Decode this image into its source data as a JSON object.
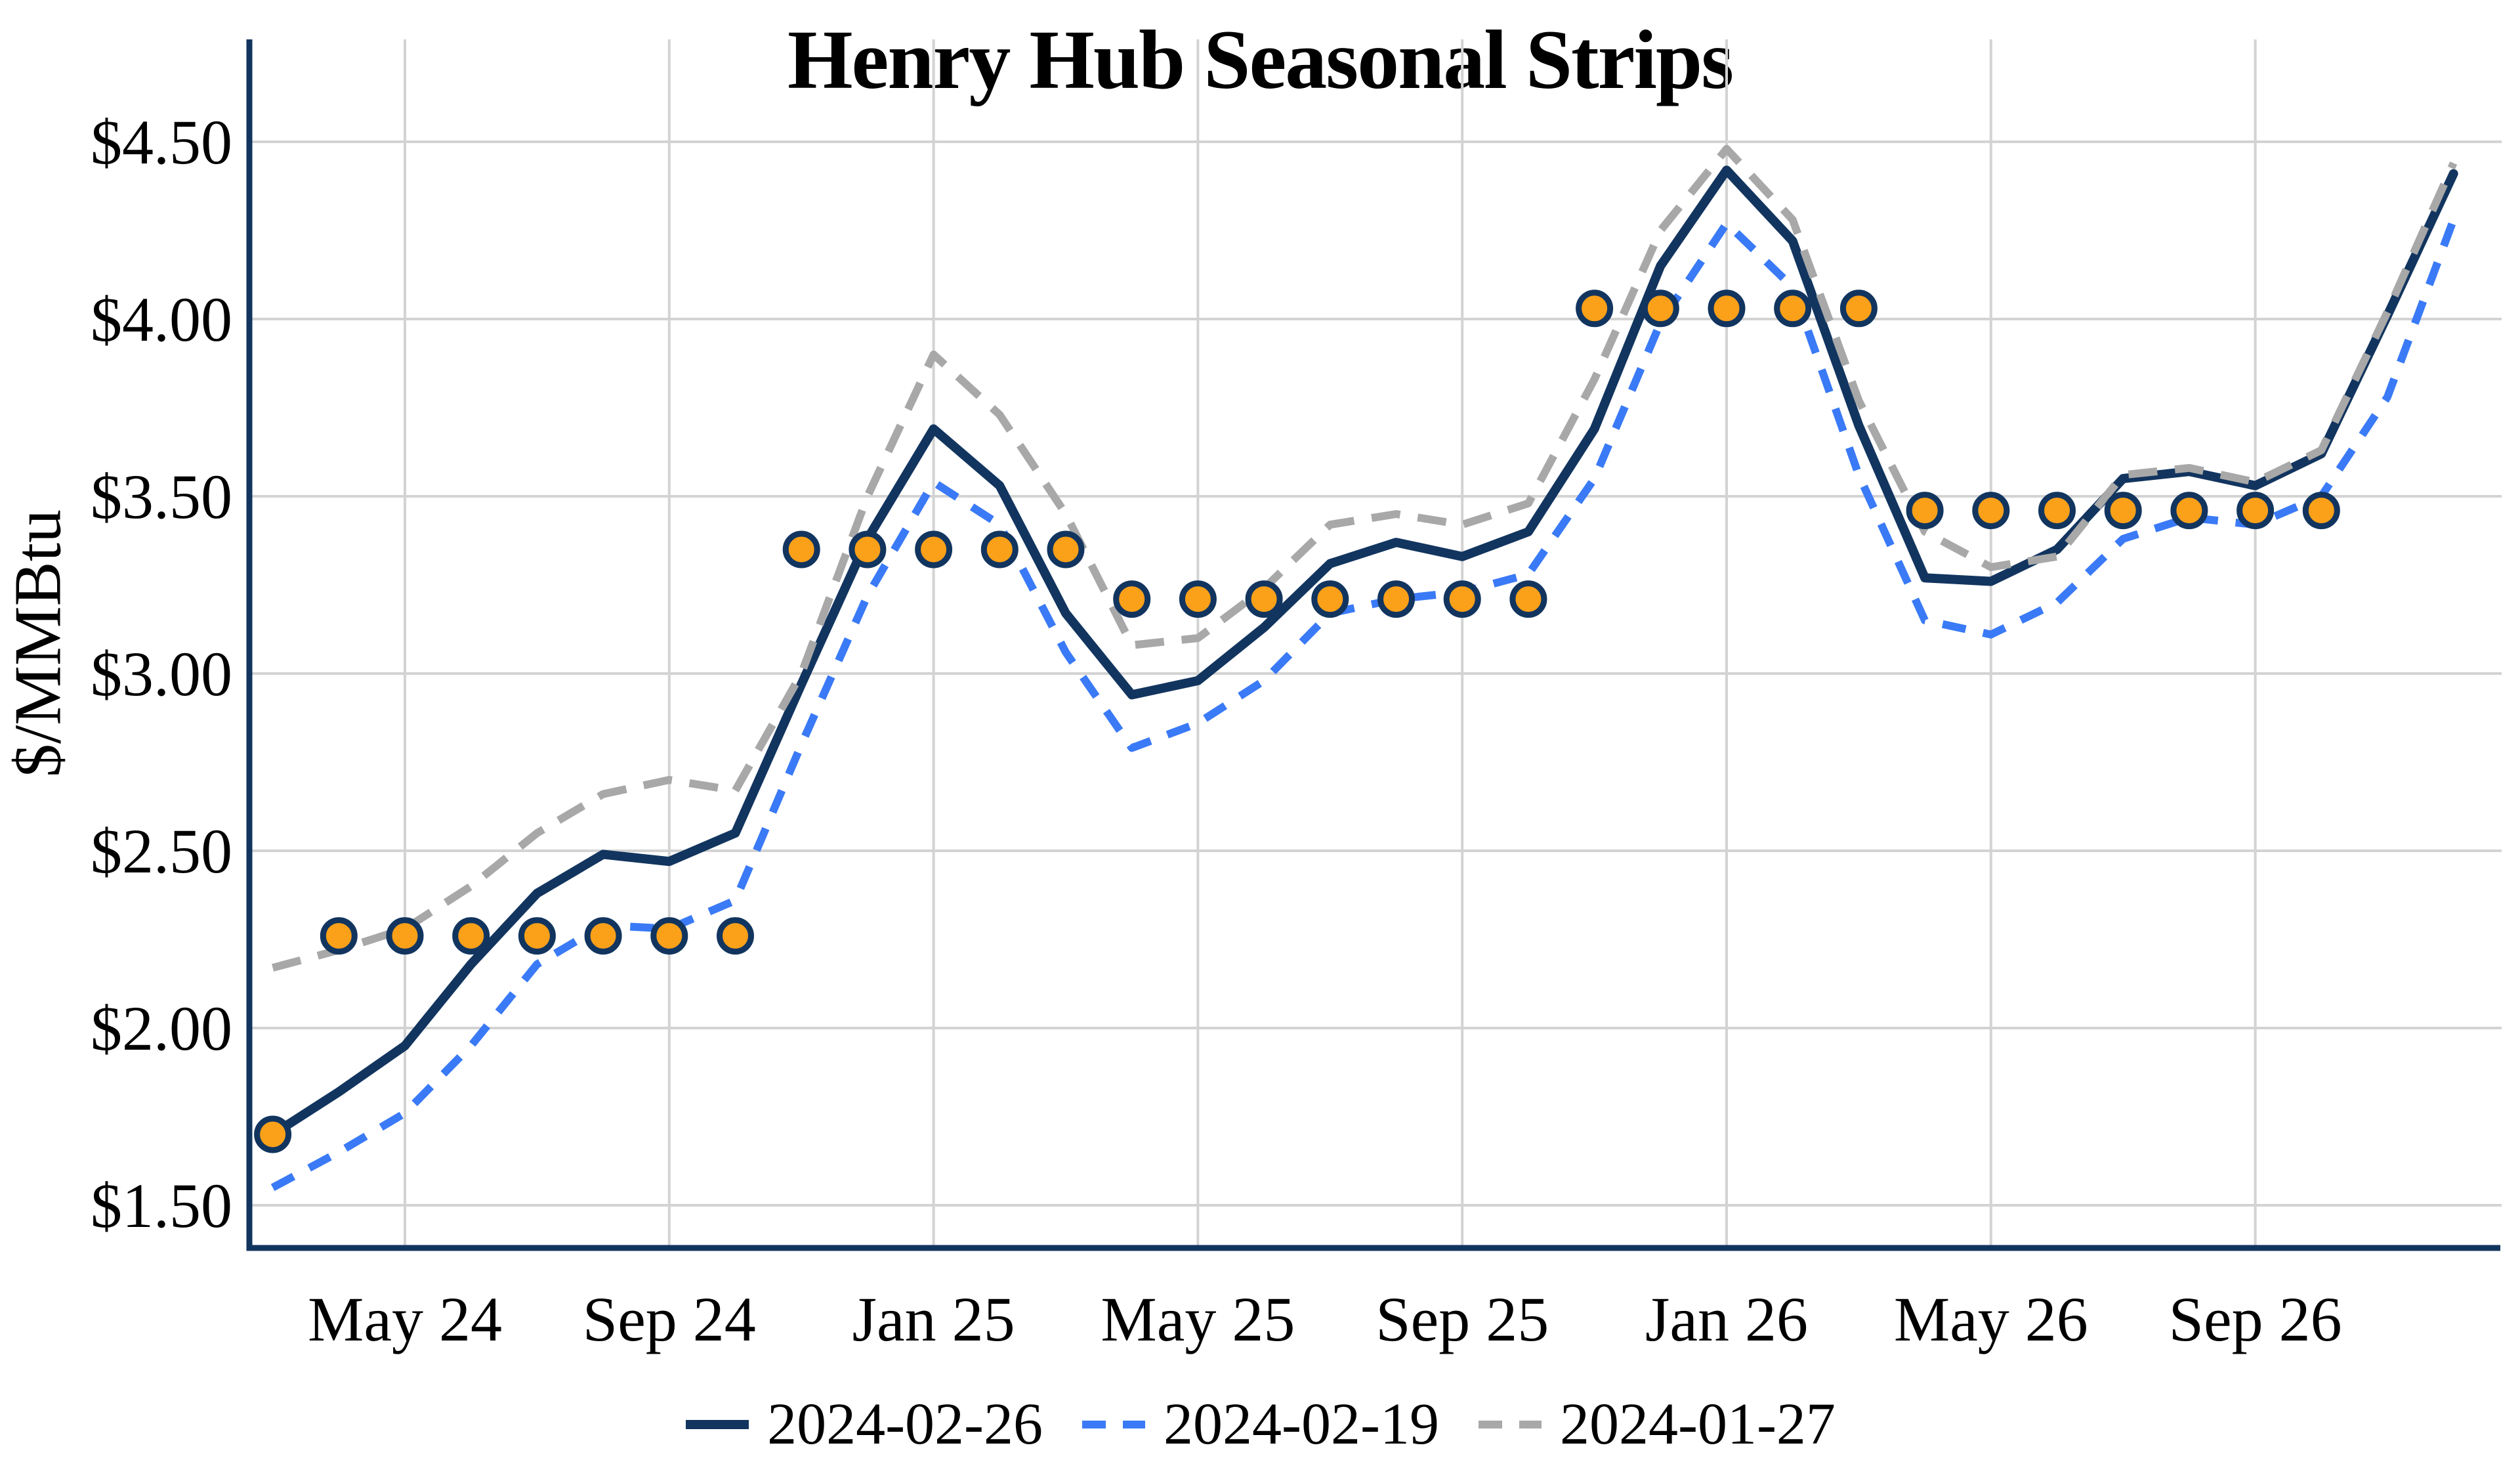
{
  "chart_data": {
    "type": "line",
    "title": "Henry Hub Seasonal Strips",
    "ylabel": "$/MMBtu",
    "xlabel": "",
    "grid": true,
    "legend_position": "bottom",
    "x_categories": [
      "Mar 24",
      "Apr 24",
      "May 24",
      "Jun 24",
      "Jul 24",
      "Aug 24",
      "Sep 24",
      "Oct 24",
      "Nov 24",
      "Dec 24",
      "Jan 25",
      "Feb 25",
      "Mar 25",
      "Apr 25",
      "May 25",
      "Jun 25",
      "Jul 25",
      "Aug 25",
      "Sep 25",
      "Oct 25",
      "Nov 25",
      "Dec 25",
      "Jan 26",
      "Feb 26",
      "Mar 26",
      "Apr 26",
      "May 26",
      "Jun 26",
      "Jul 26",
      "Aug 26",
      "Sep 26",
      "Oct 26",
      "Nov 26",
      "Dec 26"
    ],
    "x_ticks": [
      {
        "index": 2,
        "label": "May 24"
      },
      {
        "index": 6,
        "label": "Sep 24"
      },
      {
        "index": 10,
        "label": "Jan 25"
      },
      {
        "index": 14,
        "label": "May 25"
      },
      {
        "index": 18,
        "label": "Sep 25"
      },
      {
        "index": 22,
        "label": "Jan 26"
      },
      {
        "index": 26,
        "label": "May 26"
      },
      {
        "index": 30,
        "label": "Sep 26"
      }
    ],
    "y_ticks": [
      {
        "value": 1.5,
        "label": "$1.50"
      },
      {
        "value": 2.0,
        "label": "$2.00"
      },
      {
        "value": 2.5,
        "label": "$2.50"
      },
      {
        "value": 3.0,
        "label": "$3.00"
      },
      {
        "value": 3.5,
        "label": "$3.50"
      },
      {
        "value": 4.0,
        "label": "$4.00"
      },
      {
        "value": 4.5,
        "label": "$4.50"
      }
    ],
    "ylim": [
      1.38,
      4.79
    ],
    "series": [
      {
        "name": "2024-02-26",
        "style": "solid",
        "color": "#12355F",
        "values": [
          1.7,
          1.82,
          1.95,
          2.18,
          2.38,
          2.49,
          2.47,
          2.55,
          2.97,
          3.38,
          3.69,
          3.53,
          3.17,
          2.94,
          2.98,
          3.13,
          3.31,
          3.37,
          3.33,
          3.4,
          3.69,
          4.15,
          4.42,
          4.22,
          3.7,
          3.27,
          3.26,
          3.35,
          3.55,
          3.57,
          3.53,
          3.62,
          4.01,
          4.41
        ]
      },
      {
        "name": "2024-02-19",
        "style": "dashed",
        "color": "#3A7AF6",
        "values": [
          1.55,
          1.65,
          1.76,
          1.95,
          2.18,
          2.29,
          2.28,
          2.36,
          2.8,
          3.22,
          3.54,
          3.42,
          3.06,
          2.79,
          2.86,
          2.98,
          3.17,
          3.21,
          3.23,
          3.28,
          3.55,
          3.99,
          4.27,
          4.09,
          3.56,
          3.15,
          3.11,
          3.2,
          3.38,
          3.44,
          3.42,
          3.5,
          3.78,
          4.28
        ]
      },
      {
        "name": "2024-01-27",
        "style": "dashed",
        "color": "#A8A8A8",
        "values": [
          2.17,
          2.22,
          2.28,
          2.4,
          2.55,
          2.66,
          2.7,
          2.67,
          3.0,
          3.5,
          3.9,
          3.73,
          3.45,
          3.08,
          3.1,
          3.24,
          3.42,
          3.45,
          3.42,
          3.48,
          3.83,
          4.25,
          4.48,
          4.28,
          3.77,
          3.4,
          3.3,
          3.33,
          3.56,
          3.58,
          3.54,
          3.63,
          4.02,
          4.44
        ]
      }
    ],
    "strip_markers": {
      "name": "seasonal-strip-averages",
      "fill": "#FAA019",
      "border": "#12355F",
      "values": [
        1.7,
        2.26,
        2.26,
        2.26,
        2.26,
        2.26,
        2.26,
        2.26,
        3.35,
        3.35,
        3.35,
        3.35,
        3.35,
        3.21,
        3.21,
        3.21,
        3.21,
        3.21,
        3.21,
        3.21,
        4.03,
        4.03,
        4.03,
        4.03,
        4.03,
        3.46,
        3.46,
        3.46,
        3.46,
        3.46,
        3.46,
        3.46,
        null,
        null
      ]
    },
    "colors": {
      "grid": "#D3D3D3",
      "spine": "#12355F",
      "background": "#FFFFFF",
      "text": "#000000"
    }
  }
}
